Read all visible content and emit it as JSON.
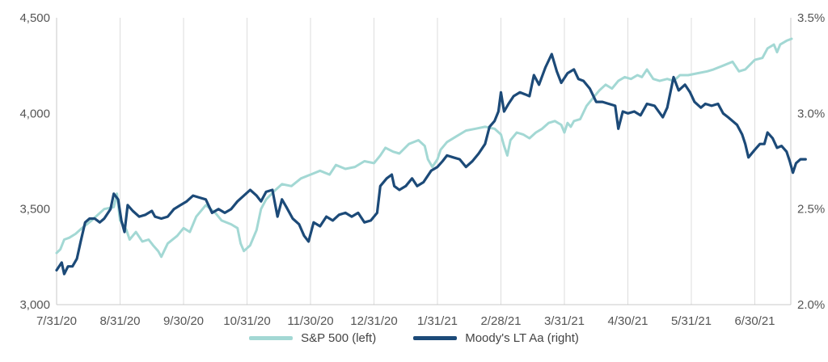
{
  "chart_data": {
    "type": "line",
    "title": "",
    "xlabel": "",
    "x_ticks": [
      "7/31/20",
      "8/31/20",
      "9/30/20",
      "10/31/20",
      "11/30/20",
      "12/31/20",
      "1/31/21",
      "2/28/21",
      "3/31/21",
      "4/30/21",
      "5/31/21",
      "6/30/21"
    ],
    "left_axis": {
      "ylim": [
        3000,
        4500
      ],
      "ticks": [
        "3,000",
        "3,500",
        "4,000",
        "4,500"
      ],
      "tick_values": [
        3000,
        3500,
        4000,
        4500
      ]
    },
    "right_axis": {
      "ylim": [
        2.0,
        3.5
      ],
      "ticks": [
        "2.0%",
        "2.5%",
        "3.0%",
        "3.5%"
      ],
      "tick_values": [
        2.0,
        2.5,
        3.0,
        3.5
      ]
    },
    "grid": "vertical",
    "series": [
      {
        "name": "S&P 500 (left)",
        "axis": "left",
        "color": "#A3D8D4",
        "points": [
          [
            0,
            3270
          ],
          [
            0.06,
            3290
          ],
          [
            0.12,
            3340
          ],
          [
            0.2,
            3350
          ],
          [
            0.3,
            3370
          ],
          [
            0.4,
            3400
          ],
          [
            0.55,
            3440
          ],
          [
            0.75,
            3500
          ],
          [
            0.9,
            3510
          ],
          [
            0.95,
            3580
          ],
          [
            1.0,
            3440
          ],
          [
            1.1,
            3390
          ],
          [
            1.15,
            3340
          ],
          [
            1.25,
            3380
          ],
          [
            1.35,
            3330
          ],
          [
            1.45,
            3340
          ],
          [
            1.52,
            3310
          ],
          [
            1.6,
            3280
          ],
          [
            1.65,
            3250
          ],
          [
            1.75,
            3320
          ],
          [
            1.9,
            3360
          ],
          [
            2.0,
            3400
          ],
          [
            2.1,
            3380
          ],
          [
            2.2,
            3460
          ],
          [
            2.35,
            3520
          ],
          [
            2.5,
            3480
          ],
          [
            2.6,
            3440
          ],
          [
            2.75,
            3420
          ],
          [
            2.85,
            3400
          ],
          [
            2.9,
            3320
          ],
          [
            2.95,
            3280
          ],
          [
            3.05,
            3310
          ],
          [
            3.15,
            3390
          ],
          [
            3.22,
            3500
          ],
          [
            3.3,
            3550
          ],
          [
            3.45,
            3600
          ],
          [
            3.55,
            3630
          ],
          [
            3.7,
            3620
          ],
          [
            3.85,
            3660
          ],
          [
            4.0,
            3680
          ],
          [
            4.15,
            3700
          ],
          [
            4.3,
            3680
          ],
          [
            4.4,
            3730
          ],
          [
            4.55,
            3710
          ],
          [
            4.7,
            3720
          ],
          [
            4.85,
            3750
          ],
          [
            5.0,
            3740
          ],
          [
            5.1,
            3780
          ],
          [
            5.18,
            3820
          ],
          [
            5.3,
            3800
          ],
          [
            5.4,
            3790
          ],
          [
            5.55,
            3840
          ],
          [
            5.7,
            3860
          ],
          [
            5.8,
            3830
          ],
          [
            5.85,
            3760
          ],
          [
            5.92,
            3720
          ],
          [
            6.0,
            3760
          ],
          [
            6.05,
            3810
          ],
          [
            6.15,
            3850
          ],
          [
            6.3,
            3880
          ],
          [
            6.45,
            3910
          ],
          [
            6.6,
            3920
          ],
          [
            6.75,
            3930
          ],
          [
            6.9,
            3920
          ],
          [
            7.0,
            3890
          ],
          [
            7.05,
            3830
          ],
          [
            7.1,
            3780
          ],
          [
            7.15,
            3860
          ],
          [
            7.25,
            3900
          ],
          [
            7.35,
            3890
          ],
          [
            7.45,
            3870
          ],
          [
            7.55,
            3900
          ],
          [
            7.65,
            3920
          ],
          [
            7.75,
            3950
          ],
          [
            7.85,
            3960
          ],
          [
            7.95,
            3940
          ],
          [
            8.0,
            3900
          ],
          [
            8.05,
            3950
          ],
          [
            8.1,
            3930
          ],
          [
            8.15,
            3960
          ],
          [
            8.25,
            3970
          ],
          [
            8.35,
            4040
          ],
          [
            8.45,
            4080
          ],
          [
            8.55,
            4120
          ],
          [
            8.65,
            4150
          ],
          [
            8.75,
            4130
          ],
          [
            8.85,
            4170
          ],
          [
            8.95,
            4190
          ],
          [
            9.05,
            4180
          ],
          [
            9.15,
            4200
          ],
          [
            9.22,
            4190
          ],
          [
            9.3,
            4230
          ],
          [
            9.4,
            4180
          ],
          [
            9.5,
            4170
          ],
          [
            9.62,
            4180
          ],
          [
            9.72,
            4170
          ],
          [
            9.82,
            4200
          ],
          [
            9.95,
            4200
          ],
          [
            10.1,
            4210
          ],
          [
            10.25,
            4220
          ],
          [
            10.35,
            4230
          ],
          [
            10.5,
            4250
          ],
          [
            10.65,
            4270
          ],
          [
            10.75,
            4220
          ],
          [
            10.85,
            4230
          ],
          [
            11.0,
            4280
          ],
          [
            11.12,
            4290
          ],
          [
            11.2,
            4340
          ],
          [
            11.3,
            4360
          ],
          [
            11.35,
            4320
          ],
          [
            11.4,
            4360
          ],
          [
            11.5,
            4380
          ],
          [
            11.58,
            4390
          ]
        ]
      },
      {
        "name": "Moody's LT Aa (right)",
        "axis": "right",
        "color": "#1C4A78",
        "points": [
          [
            0,
            2.18
          ],
          [
            0.08,
            2.22
          ],
          [
            0.12,
            2.16
          ],
          [
            0.18,
            2.2
          ],
          [
            0.25,
            2.2
          ],
          [
            0.32,
            2.24
          ],
          [
            0.38,
            2.33
          ],
          [
            0.45,
            2.43
          ],
          [
            0.52,
            2.45
          ],
          [
            0.6,
            2.45
          ],
          [
            0.68,
            2.43
          ],
          [
            0.75,
            2.45
          ],
          [
            0.85,
            2.5
          ],
          [
            0.9,
            2.58
          ],
          [
            0.97,
            2.55
          ],
          [
            1.02,
            2.44
          ],
          [
            1.07,
            2.38
          ],
          [
            1.12,
            2.52
          ],
          [
            1.2,
            2.49
          ],
          [
            1.3,
            2.46
          ],
          [
            1.4,
            2.47
          ],
          [
            1.5,
            2.49
          ],
          [
            1.55,
            2.46
          ],
          [
            1.65,
            2.45
          ],
          [
            1.75,
            2.46
          ],
          [
            1.85,
            2.5
          ],
          [
            1.95,
            2.52
          ],
          [
            2.05,
            2.54
          ],
          [
            2.15,
            2.57
          ],
          [
            2.25,
            2.56
          ],
          [
            2.35,
            2.55
          ],
          [
            2.45,
            2.48
          ],
          [
            2.55,
            2.5
          ],
          [
            2.65,
            2.48
          ],
          [
            2.75,
            2.5
          ],
          [
            2.85,
            2.54
          ],
          [
            2.95,
            2.57
          ],
          [
            3.05,
            2.6
          ],
          [
            3.15,
            2.57
          ],
          [
            3.22,
            2.54
          ],
          [
            3.3,
            2.59
          ],
          [
            3.4,
            2.6
          ],
          [
            3.48,
            2.46
          ],
          [
            3.55,
            2.55
          ],
          [
            3.62,
            2.51
          ],
          [
            3.72,
            2.45
          ],
          [
            3.82,
            2.42
          ],
          [
            3.9,
            2.36
          ],
          [
            3.97,
            2.33
          ],
          [
            4.05,
            2.43
          ],
          [
            4.15,
            2.41
          ],
          [
            4.25,
            2.46
          ],
          [
            4.35,
            2.44
          ],
          [
            4.45,
            2.47
          ],
          [
            4.55,
            2.48
          ],
          [
            4.65,
            2.46
          ],
          [
            4.75,
            2.48
          ],
          [
            4.85,
            2.43
          ],
          [
            4.95,
            2.44
          ],
          [
            5.05,
            2.48
          ],
          [
            5.1,
            2.62
          ],
          [
            5.2,
            2.66
          ],
          [
            5.28,
            2.68
          ],
          [
            5.32,
            2.62
          ],
          [
            5.4,
            2.6
          ],
          [
            5.5,
            2.62
          ],
          [
            5.6,
            2.66
          ],
          [
            5.68,
            2.62
          ],
          [
            5.78,
            2.64
          ],
          [
            5.9,
            2.7
          ],
          [
            6.0,
            2.72
          ],
          [
            6.08,
            2.75
          ],
          [
            6.15,
            2.78
          ],
          [
            6.25,
            2.77
          ],
          [
            6.35,
            2.76
          ],
          [
            6.45,
            2.72
          ],
          [
            6.55,
            2.75
          ],
          [
            6.65,
            2.79
          ],
          [
            6.75,
            2.84
          ],
          [
            6.82,
            2.93
          ],
          [
            6.9,
            2.96
          ],
          [
            6.96,
            3.01
          ],
          [
            7.0,
            3.11
          ],
          [
            7.05,
            3.01
          ],
          [
            7.12,
            3.05
          ],
          [
            7.2,
            3.09
          ],
          [
            7.3,
            3.11
          ],
          [
            7.38,
            3.1
          ],
          [
            7.45,
            3.09
          ],
          [
            7.52,
            3.2
          ],
          [
            7.6,
            3.15
          ],
          [
            7.7,
            3.24
          ],
          [
            7.8,
            3.31
          ],
          [
            7.88,
            3.22
          ],
          [
            7.95,
            3.16
          ],
          [
            8.05,
            3.21
          ],
          [
            8.15,
            3.23
          ],
          [
            8.22,
            3.18
          ],
          [
            8.3,
            3.17
          ],
          [
            8.4,
            3.13
          ],
          [
            8.5,
            3.06
          ],
          [
            8.6,
            3.06
          ],
          [
            8.7,
            3.05
          ],
          [
            8.8,
            3.04
          ],
          [
            8.85,
            2.92
          ],
          [
            8.92,
            3.01
          ],
          [
            9.0,
            3.0
          ],
          [
            9.1,
            3.01
          ],
          [
            9.2,
            2.99
          ],
          [
            9.3,
            3.05
          ],
          [
            9.42,
            3.04
          ],
          [
            9.55,
            2.98
          ],
          [
            9.62,
            3.03
          ],
          [
            9.72,
            3.19
          ],
          [
            9.8,
            3.12
          ],
          [
            9.9,
            3.15
          ],
          [
            9.98,
            3.11
          ],
          [
            10.05,
            3.06
          ],
          [
            10.15,
            3.03
          ],
          [
            10.22,
            3.05
          ],
          [
            10.32,
            3.04
          ],
          [
            10.42,
            3.05
          ],
          [
            10.5,
            3.0
          ],
          [
            10.58,
            2.98
          ],
          [
            10.65,
            2.96
          ],
          [
            10.72,
            2.94
          ],
          [
            10.8,
            2.89
          ],
          [
            10.85,
            2.84
          ],
          [
            10.9,
            2.77
          ],
          [
            11.0,
            2.81
          ],
          [
            11.08,
            2.84
          ],
          [
            11.15,
            2.84
          ],
          [
            11.2,
            2.9
          ],
          [
            11.28,
            2.87
          ],
          [
            11.35,
            2.82
          ],
          [
            11.42,
            2.83
          ],
          [
            11.5,
            2.8
          ],
          [
            11.55,
            2.75
          ],
          [
            11.6,
            2.69
          ],
          [
            11.65,
            2.74
          ],
          [
            11.72,
            2.76
          ],
          [
            11.8,
            2.76
          ]
        ]
      }
    ],
    "legend_position": "bottom-center"
  },
  "legend": {
    "items": [
      {
        "label": "S&P 500 (left)",
        "color": "#A3D8D4"
      },
      {
        "label": "Moody's LT Aa (right)",
        "color": "#1C4A78"
      }
    ]
  }
}
